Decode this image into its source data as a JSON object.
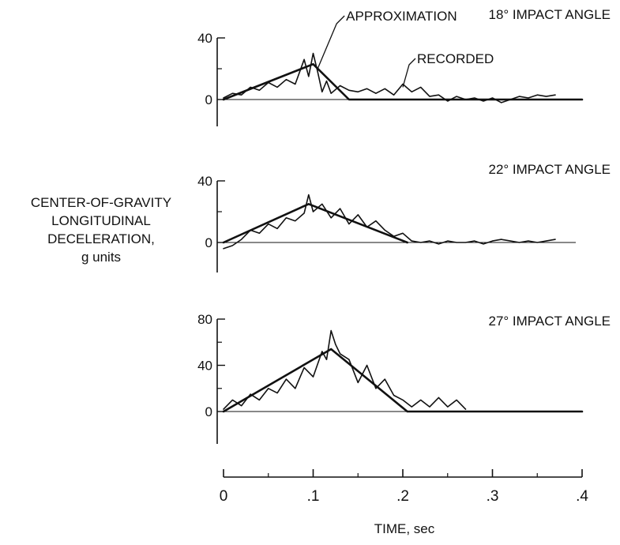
{
  "figure": {
    "ylabel_lines": [
      "CENTER-OF-GRAVITY",
      "LONGITUDINAL",
      "DECELERATION,",
      "g units"
    ],
    "xlabel": "TIME, sec"
  },
  "chart_data": [
    {
      "type": "line",
      "title": "18° IMPACT ANGLE",
      "ylabel": "CENTER-OF-GRAVITY LONGITUDINAL DECELERATION, g units",
      "xlabel": "TIME, sec",
      "ylim": [
        -20,
        40
      ],
      "yticks": [
        0,
        40
      ],
      "xlim": [
        0,
        0.4
      ],
      "annotations": [
        "APPROXIMATION",
        "RECORDED"
      ],
      "series": [
        {
          "name": "APPROXIMATION",
          "x": [
            0,
            0.1,
            0.14,
            0.4
          ],
          "y": [
            0,
            23,
            0,
            0
          ]
        },
        {
          "name": "RECORDED",
          "x": [
            0,
            0.01,
            0.02,
            0.03,
            0.04,
            0.05,
            0.06,
            0.07,
            0.08,
            0.09,
            0.095,
            0.1,
            0.105,
            0.11,
            0.115,
            0.12,
            0.13,
            0.14,
            0.15,
            0.16,
            0.17,
            0.18,
            0.19,
            0.2,
            0.21,
            0.22,
            0.23,
            0.24,
            0.25,
            0.26,
            0.27,
            0.28,
            0.29,
            0.3,
            0.31,
            0.32,
            0.33,
            0.34,
            0.35,
            0.36,
            0.37
          ],
          "y": [
            1,
            4,
            3,
            8,
            6,
            11,
            8,
            13,
            10,
            26,
            15,
            30,
            18,
            5,
            12,
            4,
            9,
            6,
            5,
            7,
            4,
            7,
            3,
            10,
            5,
            8,
            2,
            3,
            -1,
            2,
            0,
            1,
            -1,
            1,
            -2,
            0,
            2,
            1,
            3,
            2,
            3
          ]
        }
      ]
    },
    {
      "type": "line",
      "title": "22° IMPACT ANGLE",
      "ylabel": "CENTER-OF-GRAVITY LONGITUDINAL DECELERATION, g units",
      "xlabel": "TIME, sec",
      "ylim": [
        -20,
        40
      ],
      "yticks": [
        0,
        40
      ],
      "xlim": [
        0,
        0.4
      ],
      "series": [
        {
          "name": "APPROXIMATION",
          "x": [
            0,
            0.095,
            0.205
          ],
          "y": [
            0,
            25,
            0
          ]
        },
        {
          "name": "RECORDED",
          "x": [
            0,
            0.01,
            0.02,
            0.03,
            0.04,
            0.05,
            0.06,
            0.07,
            0.08,
            0.09,
            0.095,
            0.1,
            0.11,
            0.12,
            0.13,
            0.14,
            0.15,
            0.16,
            0.17,
            0.18,
            0.19,
            0.2,
            0.21,
            0.22,
            0.23,
            0.24,
            0.25,
            0.26,
            0.27,
            0.28,
            0.29,
            0.3,
            0.31,
            0.32,
            0.33,
            0.34,
            0.35,
            0.36,
            0.37
          ],
          "y": [
            -4,
            -2,
            2,
            8,
            6,
            12,
            9,
            16,
            14,
            19,
            31,
            20,
            25,
            16,
            22,
            12,
            18,
            10,
            14,
            8,
            4,
            6,
            1,
            0,
            1,
            -1,
            1,
            0,
            0,
            1,
            -1,
            1,
            2,
            1,
            0,
            1,
            0,
            1,
            2
          ]
        }
      ]
    },
    {
      "type": "line",
      "title": "27° IMPACT ANGLE",
      "ylabel": "CENTER-OF-GRAVITY LONGITUDINAL DECELERATION, g units",
      "xlabel": "TIME, sec",
      "ylim": [
        -40,
        80
      ],
      "yticks": [
        0,
        40,
        80
      ],
      "xlim": [
        0,
        0.4
      ],
      "xticks": [
        0,
        0.1,
        0.2,
        0.3,
        0.4
      ],
      "xticklabels": [
        "0",
        ".1",
        ".2",
        ".3",
        ".4"
      ],
      "series": [
        {
          "name": "APPROXIMATION",
          "x": [
            0,
            0.12,
            0.205,
            0.4
          ],
          "y": [
            0,
            54,
            0,
            0
          ]
        },
        {
          "name": "RECORDED",
          "x": [
            0,
            0.01,
            0.02,
            0.03,
            0.04,
            0.05,
            0.06,
            0.07,
            0.08,
            0.09,
            0.1,
            0.11,
            0.115,
            0.12,
            0.125,
            0.13,
            0.14,
            0.15,
            0.16,
            0.17,
            0.18,
            0.19,
            0.2,
            0.21,
            0.22,
            0.23,
            0.24,
            0.25,
            0.26,
            0.27
          ],
          "y": [
            2,
            10,
            5,
            15,
            10,
            20,
            16,
            28,
            20,
            38,
            30,
            52,
            45,
            70,
            58,
            50,
            45,
            25,
            40,
            20,
            28,
            14,
            10,
            4,
            10,
            4,
            12,
            4,
            10,
            2
          ]
        }
      ]
    }
  ]
}
